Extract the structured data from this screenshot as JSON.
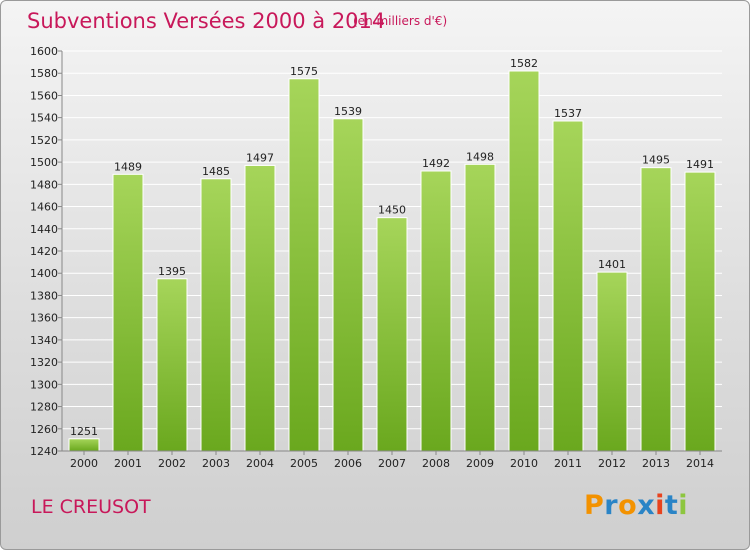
{
  "header": {
    "title": "Subventions Versées 2000 à 2014",
    "subtitle": "(en milliers d'€)"
  },
  "footer": {
    "place": "LE CREUSOT",
    "logo_text": "Proxiti"
  },
  "colors": {
    "title": "#c8185a",
    "bar_light": "#a6d55a",
    "bar_dark": "#6aa81e",
    "logo_letters": [
      "#f39200",
      "#2a84c6",
      "#f39200",
      "#2a84c6",
      "#e8431e",
      "#2a84c6",
      "#8dc63f"
    ]
  },
  "chart_data": {
    "type": "bar",
    "title": "Subventions Versées 2000 à 2014",
    "subtitle": "(en milliers d'€)",
    "xlabel": "",
    "ylabel": "",
    "categories": [
      "2000",
      "2001",
      "2002",
      "2003",
      "2004",
      "2005",
      "2006",
      "2007",
      "2008",
      "2009",
      "2010",
      "2011",
      "2012",
      "2013",
      "2014"
    ],
    "values": [
      1251,
      1489,
      1395,
      1485,
      1497,
      1575,
      1539,
      1450,
      1492,
      1498,
      1582,
      1537,
      1401,
      1495,
      1491
    ],
    "ylim": [
      1240,
      1600
    ],
    "yticks": [
      1240,
      1260,
      1280,
      1300,
      1320,
      1340,
      1360,
      1380,
      1400,
      1420,
      1440,
      1460,
      1480,
      1500,
      1520,
      1540,
      1560,
      1580,
      1600
    ],
    "grid": true,
    "legend": "none"
  }
}
